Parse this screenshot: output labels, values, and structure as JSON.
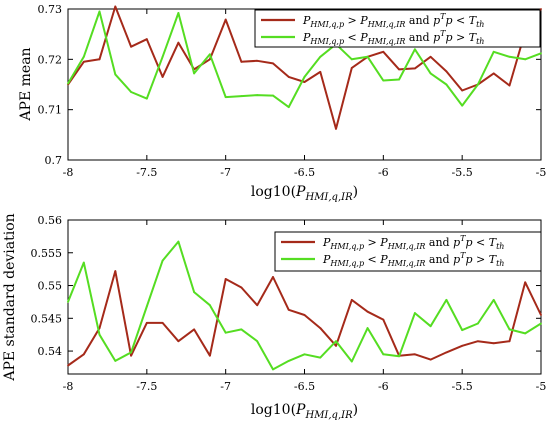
{
  "chart_data": [
    {
      "type": "line",
      "title": "",
      "xlabel": "log10(P_HMI,q,IR)",
      "ylabel": "APE mean",
      "xlim": [
        -8,
        -5
      ],
      "ylim": [
        0.7,
        0.73
      ],
      "xticks": [
        "-8",
        "-7.5",
        "-7",
        "-6.5",
        "-6",
        "-5.5",
        "-5"
      ],
      "yticks": [
        "0.7",
        "0.71",
        "0.72",
        "0.73"
      ],
      "grid": false,
      "legend_position": "top-right",
      "series": [
        {
          "name": "P_HMI,q,p > P_HMI,q,IR and p^T p < T_th",
          "color": "#a52a1a",
          "x": [
            -8.0,
            -7.9,
            -7.8,
            -7.7,
            -7.6,
            -7.5,
            -7.4,
            -7.3,
            -7.2,
            -7.1,
            -7.0,
            -6.9,
            -6.8,
            -6.7,
            -6.6,
            -6.5,
            -6.4,
            -6.3,
            -6.2,
            -6.1,
            -6.0,
            -5.9,
            -5.8,
            -5.7,
            -5.6,
            -5.5,
            -5.4,
            -5.3,
            -5.2,
            -5.1,
            -5.0
          ],
          "y": [
            0.715,
            0.7195,
            0.72,
            0.7305,
            0.7225,
            0.724,
            0.7165,
            0.7233,
            0.718,
            0.72,
            0.7279,
            0.7195,
            0.7197,
            0.7192,
            0.7165,
            0.7155,
            0.7175,
            0.7062,
            0.7183,
            0.7205,
            0.7215,
            0.718,
            0.7182,
            0.7205,
            0.7176,
            0.7138,
            0.715,
            0.7172,
            0.7148,
            0.7255,
            0.73
          ]
        },
        {
          "name": "P_HMI,q,p < P_HMI,q,IR and p^T p > T_th",
          "color": "#55dd22",
          "x": [
            -8.0,
            -7.9,
            -7.8,
            -7.7,
            -7.6,
            -7.5,
            -7.4,
            -7.3,
            -7.2,
            -7.1,
            -7.0,
            -6.9,
            -6.8,
            -6.7,
            -6.6,
            -6.5,
            -6.4,
            -6.3,
            -6.2,
            -6.1,
            -6.0,
            -5.9,
            -5.8,
            -5.7,
            -5.6,
            -5.5,
            -5.4,
            -5.3,
            -5.2,
            -5.1,
            -5.0
          ],
          "y": [
            0.7152,
            0.7205,
            0.7295,
            0.717,
            0.7135,
            0.7122,
            0.7205,
            0.7292,
            0.7172,
            0.721,
            0.7125,
            0.7127,
            0.7129,
            0.7128,
            0.7105,
            0.7165,
            0.7205,
            0.723,
            0.72,
            0.7205,
            0.7158,
            0.716,
            0.722,
            0.7172,
            0.715,
            0.7108,
            0.715,
            0.7215,
            0.7205,
            0.72,
            0.7212
          ]
        }
      ]
    },
    {
      "type": "line",
      "title": "",
      "xlabel": "log10(P_HMI,q,IR)",
      "ylabel": "APE standard deviation",
      "xlim": [
        -8,
        -5
      ],
      "ylim": [
        0.5365,
        0.56
      ],
      "xticks": [
        "-8",
        "-7.5",
        "-7",
        "-6.5",
        "-6",
        "-5.5",
        "-5"
      ],
      "yticks": [
        "0.54",
        "0.545",
        "0.55",
        "0.555",
        "0.56"
      ],
      "grid": false,
      "legend_position": "top-right",
      "series": [
        {
          "name": "P_HMI,q,p > P_HMI,q,IR and p^T p < T_th",
          "color": "#a52a1a",
          "x": [
            -8.0,
            -7.9,
            -7.8,
            -7.7,
            -7.6,
            -7.5,
            -7.4,
            -7.3,
            -7.2,
            -7.1,
            -7.0,
            -6.9,
            -6.8,
            -6.7,
            -6.6,
            -6.5,
            -6.4,
            -6.3,
            -6.2,
            -6.1,
            -6.0,
            -5.9,
            -5.8,
            -5.7,
            -5.6,
            -5.5,
            -5.4,
            -5.3,
            -5.2,
            -5.1,
            -5.0
          ],
          "y": [
            0.5378,
            0.5395,
            0.5435,
            0.5522,
            0.5393,
            0.5443,
            0.5443,
            0.5415,
            0.5433,
            0.5393,
            0.551,
            0.5497,
            0.547,
            0.5513,
            0.5463,
            0.5455,
            0.5435,
            0.5408,
            0.5478,
            0.546,
            0.5448,
            0.5393,
            0.5395,
            0.5387,
            0.5398,
            0.5408,
            0.5415,
            0.5412,
            0.5415,
            0.5505,
            0.5455
          ]
        },
        {
          "name": "P_HMI,q,p < P_HMI,q,IR and p^T p > T_th",
          "color": "#55dd22",
          "x": [
            -8.0,
            -7.9,
            -7.8,
            -7.7,
            -7.6,
            -7.5,
            -7.4,
            -7.3,
            -7.2,
            -7.1,
            -7.0,
            -6.9,
            -6.8,
            -6.7,
            -6.6,
            -6.5,
            -6.4,
            -6.3,
            -6.2,
            -6.1,
            -6.0,
            -5.9,
            -5.8,
            -5.7,
            -5.6,
            -5.5,
            -5.4,
            -5.3,
            -5.2,
            -5.1,
            -5.0
          ],
          "y": [
            0.5475,
            0.5535,
            0.5425,
            0.5385,
            0.5398,
            0.5468,
            0.5538,
            0.5567,
            0.549,
            0.547,
            0.5428,
            0.5433,
            0.5415,
            0.5372,
            0.5385,
            0.5395,
            0.539,
            0.5415,
            0.5384,
            0.5435,
            0.5395,
            0.5392,
            0.5458,
            0.5438,
            0.5478,
            0.5432,
            0.5442,
            0.5478,
            0.5433,
            0.5427,
            0.5442
          ]
        }
      ]
    }
  ],
  "legend_text": {
    "word_and": "and",
    "sym_P": "P",
    "sub_p": "HMI,q,p",
    "sub_ir": "HMI,q,IR",
    "gt": ">",
    "lt": "<",
    "sym_p": "p",
    "sup_T": "T",
    "sym_T": "T",
    "sub_th": "th"
  },
  "xlabel_parts": {
    "prefix": "log10(",
    "sym": "P",
    "sub": "HMI,q,IR",
    "suffix": ")"
  }
}
